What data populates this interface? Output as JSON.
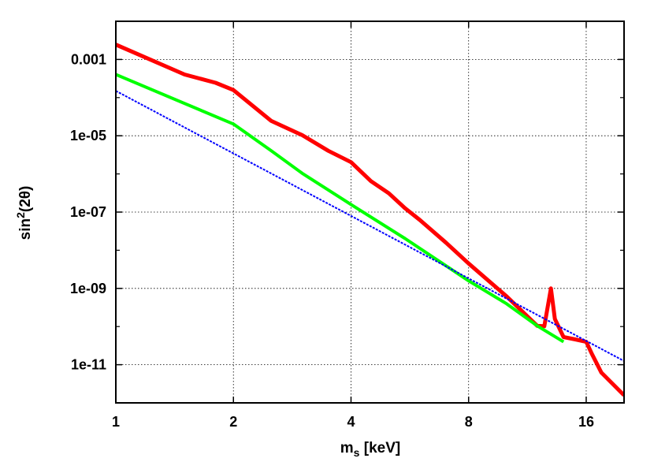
{
  "chart_data": {
    "type": "line",
    "title": "",
    "xlabel_main": "m",
    "xlabel_sub": "s",
    "xlabel_unit": " [keV]",
    "ylabel_base": "sin",
    "ylabel_sup": "2",
    "ylabel_arg": "(2θ)",
    "xscale": "log2",
    "yscale": "log10",
    "xlim": [
      1,
      20
    ],
    "ylim": [
      1e-12,
      0.01
    ],
    "grid": true,
    "legend": "none",
    "x_ticks": [
      {
        "value": 1,
        "label": "1"
      },
      {
        "value": 2,
        "label": "2"
      },
      {
        "value": 4,
        "label": "4"
      },
      {
        "value": 8,
        "label": "8"
      },
      {
        "value": 16,
        "label": "16"
      }
    ],
    "y_ticks": [
      {
        "value": 0.001,
        "label": "0.001"
      },
      {
        "value": 1e-05,
        "label": "1e-05"
      },
      {
        "value": 1e-07,
        "label": "1e-07"
      },
      {
        "value": 1e-09,
        "label": "1e-09"
      },
      {
        "value": 1e-11,
        "label": "1e-11"
      }
    ],
    "series": [
      {
        "color": "#ff0000",
        "width": 5,
        "dashed": false,
        "points": [
          [
            1.0,
            0.00245
          ],
          [
            1.5,
            0.000403
          ],
          [
            1.8,
            0.000245
          ],
          [
            2.0,
            0.000158
          ],
          [
            2.5,
            2.45e-05
          ],
          [
            3.0,
            1.04e-05
          ],
          [
            3.5,
            4.03e-06
          ],
          [
            4.0,
            2.03e-06
          ],
          [
            4.5,
            6.45e-07
          ],
          [
            5.0,
            3.1e-07
          ],
          [
            5.5,
            1.26e-07
          ],
          [
            6.0,
            6.2e-08
          ],
          [
            7.0,
            1.58e-08
          ],
          [
            8.0,
            4.5e-09
          ],
          [
            10.0,
            6.2e-10
          ],
          [
            12.0,
            1.04e-10
          ],
          [
            12.5,
            1.02e-10
          ],
          [
            13.0,
            1e-09
          ],
          [
            13.3,
            1.58e-10
          ],
          [
            14.0,
            5.3e-11
          ],
          [
            15.0,
            4.6e-11
          ],
          [
            16.0,
            3.98e-11
          ],
          [
            16.5,
            2.03e-11
          ],
          [
            17.5,
            6.2e-12
          ],
          [
            20.0,
            1.58e-12
          ]
        ]
      },
      {
        "color": "#00ff00",
        "width": 4,
        "dashed": false,
        "points": [
          [
            1.0,
            0.000403
          ],
          [
            2.0,
            2.03e-05
          ],
          [
            2.5,
            4.03e-06
          ],
          [
            3.0,
            1.04e-06
          ],
          [
            4.0,
            1.58e-07
          ],
          [
            5.5,
            2.03e-08
          ],
          [
            8.0,
            1.58e-09
          ],
          [
            10.0,
            3.98e-10
          ],
          [
            12.0,
            1.04e-10
          ],
          [
            14.0,
            3.98e-11
          ]
        ]
      },
      {
        "color": "#0000ff",
        "width": 2,
        "dashed": true,
        "points": [
          [
            1.0,
            0.00015
          ],
          [
            20.0,
            1.25e-11
          ]
        ]
      }
    ]
  }
}
